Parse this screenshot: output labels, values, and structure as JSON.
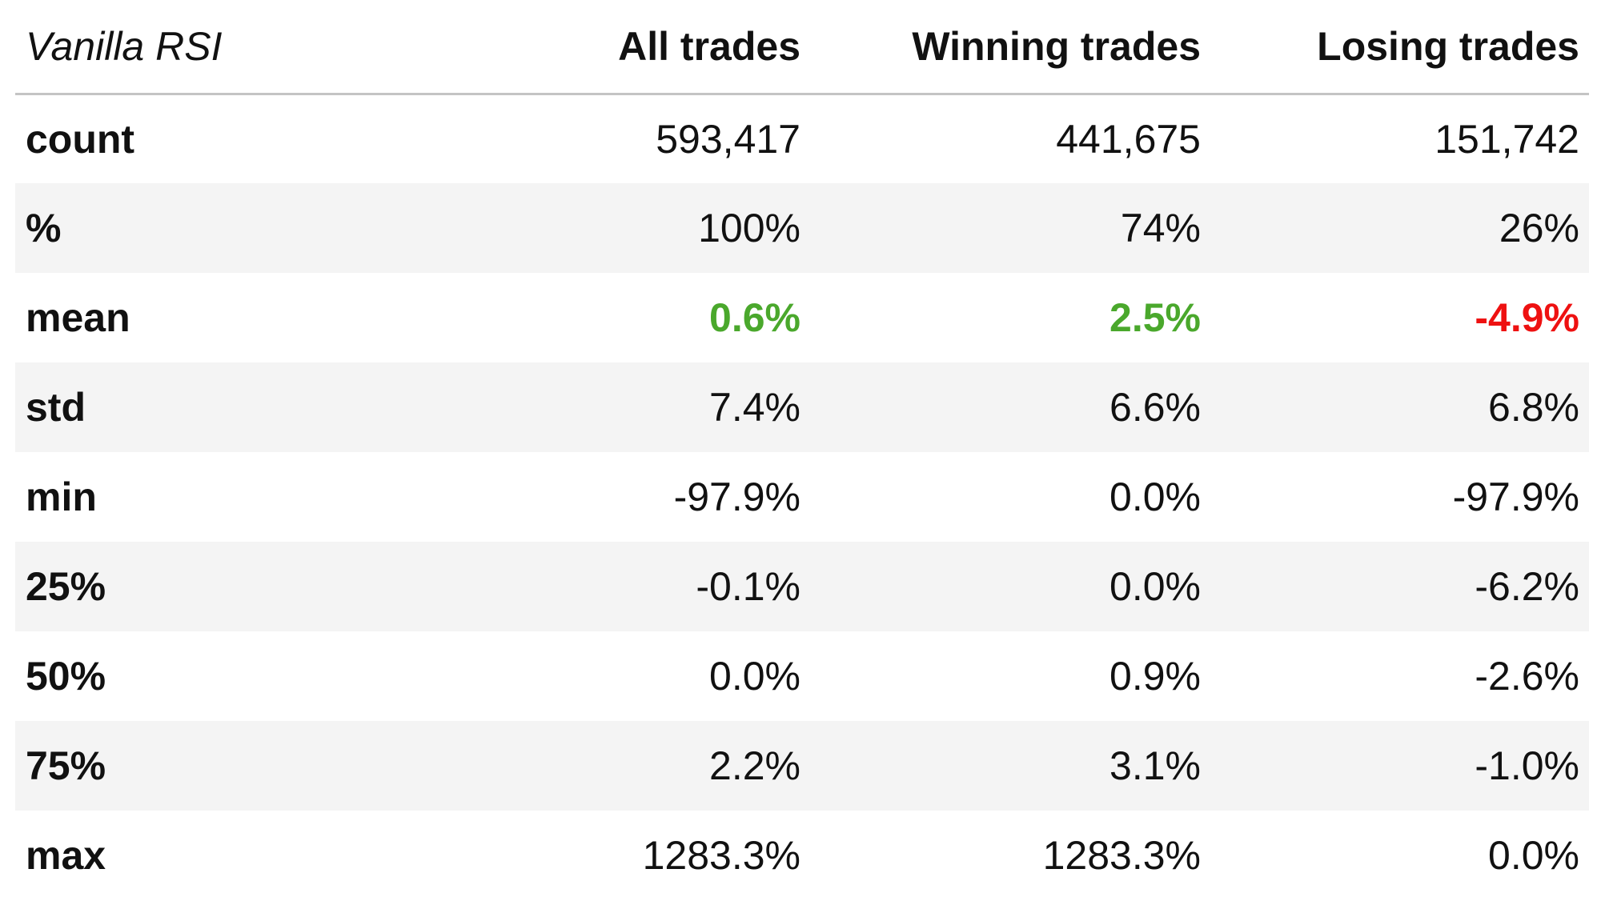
{
  "colors": {
    "positive": "#4aa82c",
    "negative": "#ee1111",
    "stripe": "#f4f4f4",
    "header_rule": "#c4c4c4"
  },
  "chart_data": {
    "type": "table",
    "title": "Vanilla RSI",
    "columns": [
      "All trades",
      "Winning trades",
      "Losing trades"
    ],
    "rows": [
      {
        "label": "count",
        "values": [
          "593,417",
          "441,675",
          "151,742"
        ]
      },
      {
        "label": "%",
        "values": [
          "100%",
          "74%",
          "26%"
        ]
      },
      {
        "label": "mean",
        "values": [
          "0.6%",
          "2.5%",
          "-4.9%"
        ],
        "value_colors": [
          "positive",
          "positive",
          "negative"
        ]
      },
      {
        "label": "std",
        "values": [
          "7.4%",
          "6.6%",
          "6.8%"
        ]
      },
      {
        "label": "min",
        "values": [
          "-97.9%",
          "0.0%",
          "-97.9%"
        ]
      },
      {
        "label": "25%",
        "values": [
          "-0.1%",
          "0.0%",
          "-6.2%"
        ]
      },
      {
        "label": "50%",
        "values": [
          "0.0%",
          "0.9%",
          "-2.6%"
        ]
      },
      {
        "label": "75%",
        "values": [
          "2.2%",
          "3.1%",
          "-1.0%"
        ]
      },
      {
        "label": "max",
        "values": [
          "1283.3%",
          "1283.3%",
          "0.0%"
        ]
      }
    ]
  }
}
